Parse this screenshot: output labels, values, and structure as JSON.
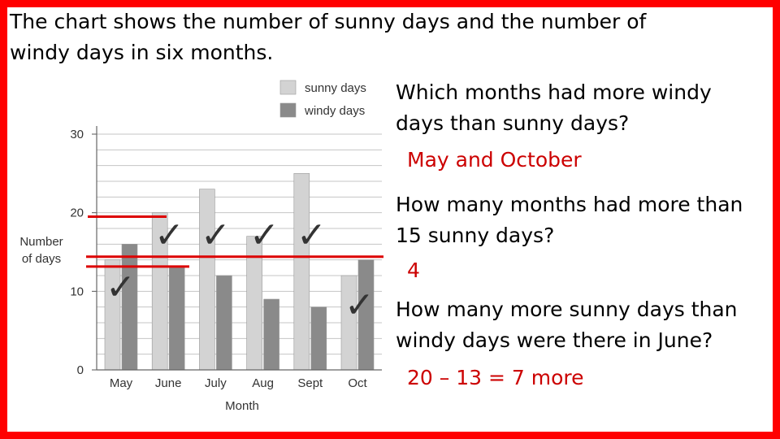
{
  "slide": {
    "intro": "The chart shows the number of sunny days and the number of windy days in six months.",
    "questions": [
      {
        "q": "Which months had more windy days than sunny days?",
        "a": "May and October"
      },
      {
        "q": "How many months had more than 15 sunny days?",
        "a": "4"
      },
      {
        "q": "How many more sunny days than windy days were there in June?",
        "a": "20 – 13 =  7 more"
      }
    ],
    "border_color": "#ff0000",
    "answer_color": "#cc0000"
  },
  "chart_data": {
    "type": "bar",
    "title": "",
    "xlabel": "Month",
    "ylabel": "Number of days",
    "categories": [
      "May",
      "June",
      "July",
      "Aug",
      "Sept",
      "Oct"
    ],
    "series": [
      {
        "name": "sunny days",
        "color": "#d3d3d3",
        "values": [
          14,
          20,
          23,
          17,
          25,
          12
        ]
      },
      {
        "name": "windy days",
        "color": "#8a8a8a",
        "values": [
          16,
          13,
          12,
          9,
          8,
          14
        ]
      }
    ],
    "ylim": [
      0,
      30
    ],
    "yticks": [
      0,
      10,
      20,
      30
    ],
    "grid": true,
    "legend": "top-right",
    "annotations": {
      "check_marks": [
        "May",
        "June",
        "July",
        "Aug",
        "Sept",
        "Oct"
      ],
      "check_mark_symbol": "✓",
      "reference_lines": [
        20,
        15,
        13
      ]
    }
  }
}
